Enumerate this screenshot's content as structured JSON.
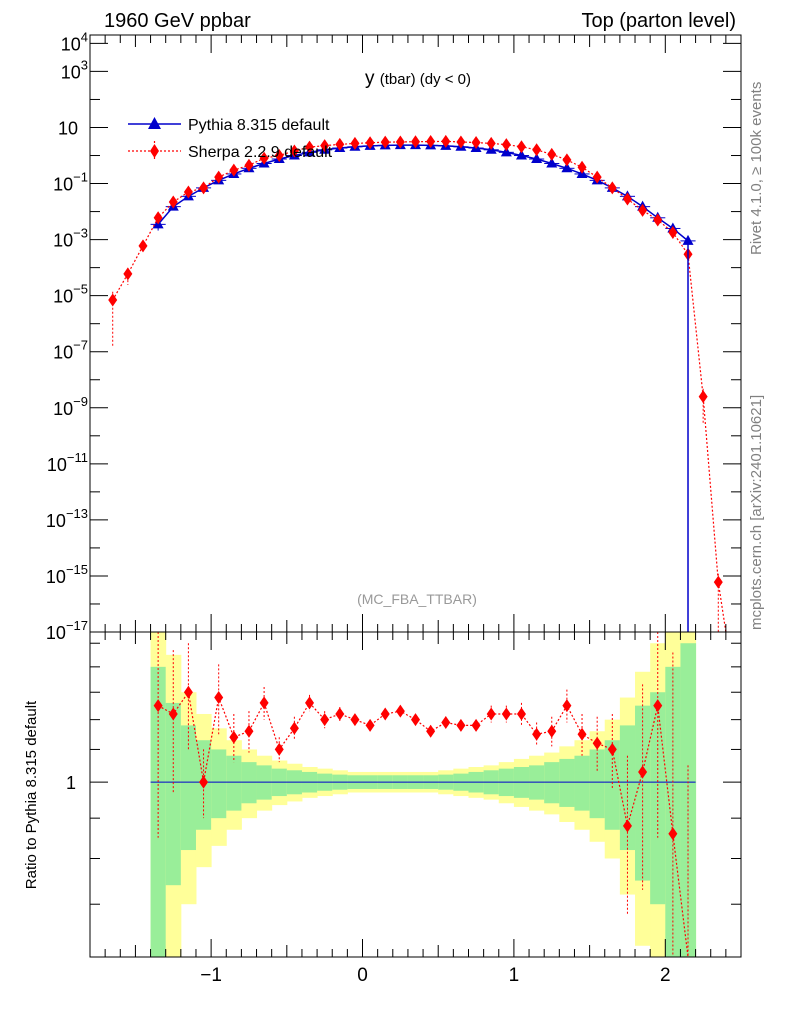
{
  "header": {
    "left": "1960 GeV ppbar",
    "right": "Top (parton level)"
  },
  "side_labels": {
    "rivet": "Rivet 4.1.0, ≥ 100k events",
    "mcplots": "mcplots.cern.ch [arXiv:2401.10621]"
  },
  "chart_data": [
    {
      "type": "line",
      "title": "y (tbar) (dy < 0)",
      "watermark": "(MC_FBA_TTBAR)",
      "yscale": "log",
      "xlim": [
        -1.8,
        2.5
      ],
      "ylim_exp": [
        -17,
        4.3
      ],
      "y_tick_exponents": [
        -17,
        -15,
        -13,
        -11,
        -9,
        -7,
        -5,
        -3,
        -1,
        1,
        3,
        4
      ],
      "y_tick_labels": [
        "10",
        "10",
        "10",
        "10",
        "10",
        "10",
        "10",
        "10",
        "10",
        "10",
        "10",
        "10"
      ],
      "y_tick_sups": [
        "−17",
        "−15",
        "−13",
        "−11",
        "−9",
        "−7",
        "−5",
        "−3",
        "−1",
        "",
        "3",
        "4"
      ],
      "legend": [
        "Pythia 8.315 default",
        "Sherpa 2.2.9 default"
      ],
      "colors": {
        "pythia": "#0000cc",
        "sherpa": "#ff0000"
      },
      "series": [
        {
          "name": "Pythia 8.315 default",
          "x": [
            -1.35,
            -1.25,
            -1.15,
            -1.05,
            -0.95,
            -0.85,
            -0.75,
            -0.65,
            -0.55,
            -0.45,
            -0.35,
            -0.25,
            -0.15,
            -0.05,
            0.05,
            0.15,
            0.25,
            0.35,
            0.45,
            0.55,
            0.65,
            0.75,
            0.85,
            0.95,
            1.05,
            1.15,
            1.25,
            1.35,
            1.45,
            1.55,
            1.65,
            1.75,
            1.85,
            1.95,
            2.05,
            2.15
          ],
          "y": [
            0.0035,
            0.015,
            0.035,
            0.07,
            0.13,
            0.22,
            0.35,
            0.52,
            0.75,
            1.0,
            1.3,
            1.6,
            1.85,
            2.05,
            2.2,
            2.3,
            2.35,
            2.35,
            2.3,
            2.2,
            2.05,
            1.85,
            1.6,
            1.3,
            1.0,
            0.75,
            0.52,
            0.35,
            0.22,
            0.13,
            0.07,
            0.035,
            0.015,
            0.006,
            0.0025,
            0.0009
          ],
          "yerr_frac": [
            0.4,
            0.15,
            0.1,
            0.07,
            0.05,
            0.04,
            0.03,
            0.03,
            0.02,
            0.02,
            0.02,
            0.02,
            0.02,
            0.02,
            0.02,
            0.02,
            0.02,
            0.02,
            0.02,
            0.02,
            0.02,
            0.02,
            0.02,
            0.02,
            0.02,
            0.03,
            0.03,
            0.04,
            0.05,
            0.06,
            0.08,
            0.1,
            0.15,
            0.25,
            0.4,
            0.5
          ]
        },
        {
          "name": "Sherpa 2.2.9 default",
          "x": [
            -1.65,
            -1.55,
            -1.45,
            -1.35,
            -1.25,
            -1.15,
            -1.05,
            -0.95,
            -0.85,
            -0.75,
            -0.65,
            -0.55,
            -0.45,
            -0.35,
            -0.25,
            -0.15,
            -0.05,
            0.05,
            0.15,
            0.25,
            0.35,
            0.45,
            0.55,
            0.65,
            0.75,
            0.85,
            0.95,
            1.05,
            1.15,
            1.25,
            1.35,
            1.45,
            1.55,
            1.65,
            1.75,
            1.85,
            1.95,
            2.05,
            2.15,
            2.25,
            2.35
          ],
          "y": [
            7e-06,
            6e-05,
            0.0006,
            0.006,
            0.022,
            0.05,
            0.07,
            0.17,
            0.3,
            0.45,
            0.8,
            1.0,
            1.45,
            2.0,
            2.25,
            2.5,
            2.7,
            2.85,
            3.0,
            3.05,
            3.1,
            3.15,
            3.2,
            3.05,
            2.9,
            2.7,
            2.45,
            2.05,
            1.6,
            1.1,
            0.7,
            0.38,
            0.17,
            0.07,
            0.028,
            0.011,
            0.005,
            0.0018,
            0.0003,
            2.5e-09,
            6e-16
          ],
          "yerr_frac": [
            0.98,
            0.6,
            0.4,
            0.4,
            0.2,
            0.15,
            0.12,
            0.08,
            0.06,
            0.05,
            0.04,
            0.03,
            0.03,
            0.02,
            0.02,
            0.02,
            0.02,
            0.02,
            0.02,
            0.02,
            0.02,
            0.02,
            0.02,
            0.02,
            0.02,
            0.02,
            0.02,
            0.02,
            0.03,
            0.03,
            0.04,
            0.05,
            0.06,
            0.08,
            0.1,
            0.15,
            0.25,
            0.4,
            0.5,
            0.9,
            0.99
          ]
        }
      ]
    },
    {
      "type": "line",
      "ylabel": "Ratio to Pythia 8.315 default",
      "xlim": [
        -1.8,
        2.5
      ],
      "ylim_log": [
        0.6,
        1.55
      ],
      "y_tick_label": "1",
      "x_tick_values": [
        -1,
        0,
        1,
        2
      ],
      "x_tick_labels": [
        "−1",
        "0",
        "1",
        "2"
      ],
      "band_colors": {
        "inner": "#99ee99",
        "outer": "#ffff99"
      },
      "band": {
        "x_edges": [
          -1.4,
          -1.3,
          -1.2,
          -1.1,
          -1.0,
          -0.9,
          -0.8,
          -0.7,
          -0.6,
          -0.5,
          -0.4,
          -0.3,
          -0.2,
          -0.1,
          0.0,
          0.1,
          0.2,
          0.3,
          0.4,
          0.5,
          0.6,
          0.7,
          0.8,
          0.9,
          1.0,
          1.1,
          1.2,
          1.3,
          1.4,
          1.5,
          1.6,
          1.7,
          1.8,
          1.9,
          2.0,
          2.1,
          2.2
        ],
        "inner_frac": [
          0.4,
          0.26,
          0.18,
          0.13,
          0.1,
          0.08,
          0.06,
          0.05,
          0.04,
          0.035,
          0.03,
          0.025,
          0.022,
          0.02,
          0.02,
          0.02,
          0.02,
          0.02,
          0.02,
          0.022,
          0.025,
          0.03,
          0.035,
          0.04,
          0.045,
          0.05,
          0.06,
          0.07,
          0.08,
          0.1,
          0.13,
          0.18,
          0.25,
          0.3,
          0.4,
          0.5
        ],
        "outer_frac": [
          0.7,
          0.45,
          0.3,
          0.22,
          0.17,
          0.13,
          0.1,
          0.08,
          0.065,
          0.055,
          0.045,
          0.04,
          0.035,
          0.03,
          0.03,
          0.03,
          0.03,
          0.03,
          0.03,
          0.035,
          0.04,
          0.045,
          0.05,
          0.06,
          0.07,
          0.08,
          0.09,
          0.11,
          0.13,
          0.16,
          0.2,
          0.28,
          0.38,
          0.5,
          0.6,
          0.7
        ]
      },
      "series": [
        {
          "name": "Sherpa / Pythia",
          "x": [
            -1.35,
            -1.25,
            -1.15,
            -1.05,
            -0.95,
            -0.85,
            -0.75,
            -0.65,
            -0.55,
            -0.45,
            -0.35,
            -0.25,
            -0.15,
            -0.05,
            0.05,
            0.15,
            0.25,
            0.35,
            0.45,
            0.55,
            0.65,
            0.75,
            0.85,
            0.95,
            1.05,
            1.15,
            1.25,
            1.35,
            1.45,
            1.55,
            1.65,
            1.75,
            1.85,
            1.95,
            2.05,
            2.15
          ],
          "y": [
            1.25,
            1.22,
            1.3,
            1.0,
            1.28,
            1.14,
            1.16,
            1.26,
            1.1,
            1.17,
            1.26,
            1.2,
            1.22,
            1.2,
            1.18,
            1.22,
            1.23,
            1.2,
            1.16,
            1.19,
            1.18,
            1.18,
            1.22,
            1.22,
            1.22,
            1.15,
            1.16,
            1.25,
            1.15,
            1.12,
            1.1,
            0.88,
            1.03,
            1.25,
            0.86,
            0.15
          ],
          "err_lo": [
            0.4,
            0.25,
            0.2,
            0.1,
            0.13,
            0.08,
            0.07,
            0.06,
            0.04,
            0.04,
            0.03,
            0.03,
            0.025,
            0.02,
            0.02,
            0.02,
            0.02,
            0.02,
            0.02,
            0.02,
            0.02,
            0.02,
            0.03,
            0.03,
            0.04,
            0.04,
            0.05,
            0.06,
            0.07,
            0.09,
            0.12,
            0.2,
            0.3,
            0.4,
            0.6,
            0.9
          ],
          "err_hi": [
            0.4,
            0.25,
            0.2,
            0.1,
            0.13,
            0.08,
            0.07,
            0.06,
            0.04,
            0.04,
            0.03,
            0.03,
            0.025,
            0.02,
            0.02,
            0.02,
            0.02,
            0.02,
            0.02,
            0.02,
            0.02,
            0.02,
            0.03,
            0.03,
            0.04,
            0.04,
            0.05,
            0.06,
            0.07,
            0.09,
            0.12,
            0.2,
            0.3,
            0.4,
            0.6,
            0.9
          ]
        }
      ]
    }
  ]
}
